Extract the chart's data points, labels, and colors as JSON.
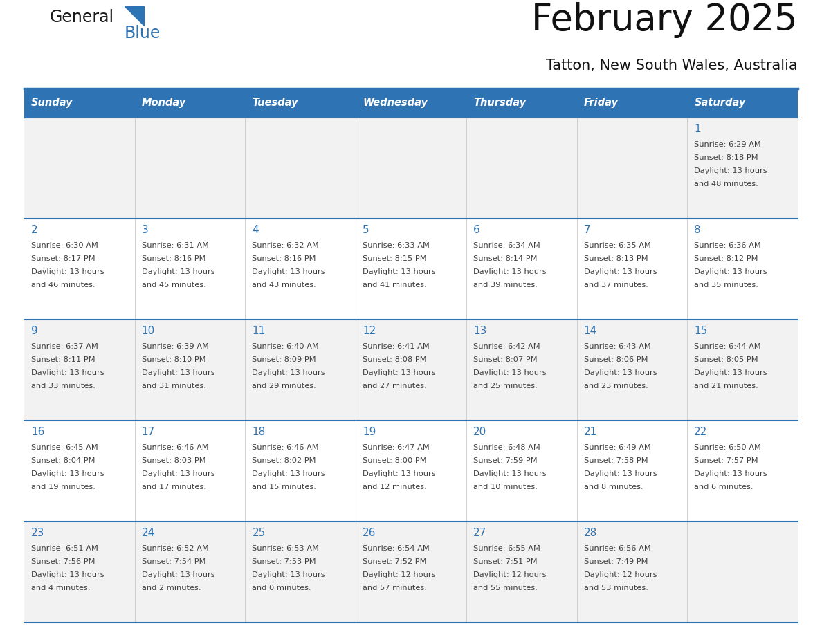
{
  "title": "February 2025",
  "subtitle": "Tatton, New South Wales, Australia",
  "header_bg": "#2E74B5",
  "header_text_color": "#FFFFFF",
  "days_of_week": [
    "Sunday",
    "Monday",
    "Tuesday",
    "Wednesday",
    "Thursday",
    "Friday",
    "Saturday"
  ],
  "row_bg_odd": "#F2F2F2",
  "row_bg_even": "#FFFFFF",
  "border_color": "#2E74B5",
  "text_color": "#404040",
  "day_num_color": "#2E74B5",
  "logo_color_general": "#1a1a1a",
  "logo_color_blue": "#2E74B5",
  "calendar_data": [
    [
      null,
      null,
      null,
      null,
      null,
      null,
      {
        "day": "1",
        "sunrise": "6:29 AM",
        "sunset": "8:18 PM",
        "daylight": "13 hours\nand 48 minutes."
      }
    ],
    [
      {
        "day": "2",
        "sunrise": "6:30 AM",
        "sunset": "8:17 PM",
        "daylight": "13 hours\nand 46 minutes."
      },
      {
        "day": "3",
        "sunrise": "6:31 AM",
        "sunset": "8:16 PM",
        "daylight": "13 hours\nand 45 minutes."
      },
      {
        "day": "4",
        "sunrise": "6:32 AM",
        "sunset": "8:16 PM",
        "daylight": "13 hours\nand 43 minutes."
      },
      {
        "day": "5",
        "sunrise": "6:33 AM",
        "sunset": "8:15 PM",
        "daylight": "13 hours\nand 41 minutes."
      },
      {
        "day": "6",
        "sunrise": "6:34 AM",
        "sunset": "8:14 PM",
        "daylight": "13 hours\nand 39 minutes."
      },
      {
        "day": "7",
        "sunrise": "6:35 AM",
        "sunset": "8:13 PM",
        "daylight": "13 hours\nand 37 minutes."
      },
      {
        "day": "8",
        "sunrise": "6:36 AM",
        "sunset": "8:12 PM",
        "daylight": "13 hours\nand 35 minutes."
      }
    ],
    [
      {
        "day": "9",
        "sunrise": "6:37 AM",
        "sunset": "8:11 PM",
        "daylight": "13 hours\nand 33 minutes."
      },
      {
        "day": "10",
        "sunrise": "6:39 AM",
        "sunset": "8:10 PM",
        "daylight": "13 hours\nand 31 minutes."
      },
      {
        "day": "11",
        "sunrise": "6:40 AM",
        "sunset": "8:09 PM",
        "daylight": "13 hours\nand 29 minutes."
      },
      {
        "day": "12",
        "sunrise": "6:41 AM",
        "sunset": "8:08 PM",
        "daylight": "13 hours\nand 27 minutes."
      },
      {
        "day": "13",
        "sunrise": "6:42 AM",
        "sunset": "8:07 PM",
        "daylight": "13 hours\nand 25 minutes."
      },
      {
        "day": "14",
        "sunrise": "6:43 AM",
        "sunset": "8:06 PM",
        "daylight": "13 hours\nand 23 minutes."
      },
      {
        "day": "15",
        "sunrise": "6:44 AM",
        "sunset": "8:05 PM",
        "daylight": "13 hours\nand 21 minutes."
      }
    ],
    [
      {
        "day": "16",
        "sunrise": "6:45 AM",
        "sunset": "8:04 PM",
        "daylight": "13 hours\nand 19 minutes."
      },
      {
        "day": "17",
        "sunrise": "6:46 AM",
        "sunset": "8:03 PM",
        "daylight": "13 hours\nand 17 minutes."
      },
      {
        "day": "18",
        "sunrise": "6:46 AM",
        "sunset": "8:02 PM",
        "daylight": "13 hours\nand 15 minutes."
      },
      {
        "day": "19",
        "sunrise": "6:47 AM",
        "sunset": "8:00 PM",
        "daylight": "13 hours\nand 12 minutes."
      },
      {
        "day": "20",
        "sunrise": "6:48 AM",
        "sunset": "7:59 PM",
        "daylight": "13 hours\nand 10 minutes."
      },
      {
        "day": "21",
        "sunrise": "6:49 AM",
        "sunset": "7:58 PM",
        "daylight": "13 hours\nand 8 minutes."
      },
      {
        "day": "22",
        "sunrise": "6:50 AM",
        "sunset": "7:57 PM",
        "daylight": "13 hours\nand 6 minutes."
      }
    ],
    [
      {
        "day": "23",
        "sunrise": "6:51 AM",
        "sunset": "7:56 PM",
        "daylight": "13 hours\nand 4 minutes."
      },
      {
        "day": "24",
        "sunrise": "6:52 AM",
        "sunset": "7:54 PM",
        "daylight": "13 hours\nand 2 minutes."
      },
      {
        "day": "25",
        "sunrise": "6:53 AM",
        "sunset": "7:53 PM",
        "daylight": "13 hours\nand 0 minutes."
      },
      {
        "day": "26",
        "sunrise": "6:54 AM",
        "sunset": "7:52 PM",
        "daylight": "12 hours\nand 57 minutes."
      },
      {
        "day": "27",
        "sunrise": "6:55 AM",
        "sunset": "7:51 PM",
        "daylight": "12 hours\nand 55 minutes."
      },
      {
        "day": "28",
        "sunrise": "6:56 AM",
        "sunset": "7:49 PM",
        "daylight": "12 hours\nand 53 minutes."
      },
      null
    ]
  ]
}
